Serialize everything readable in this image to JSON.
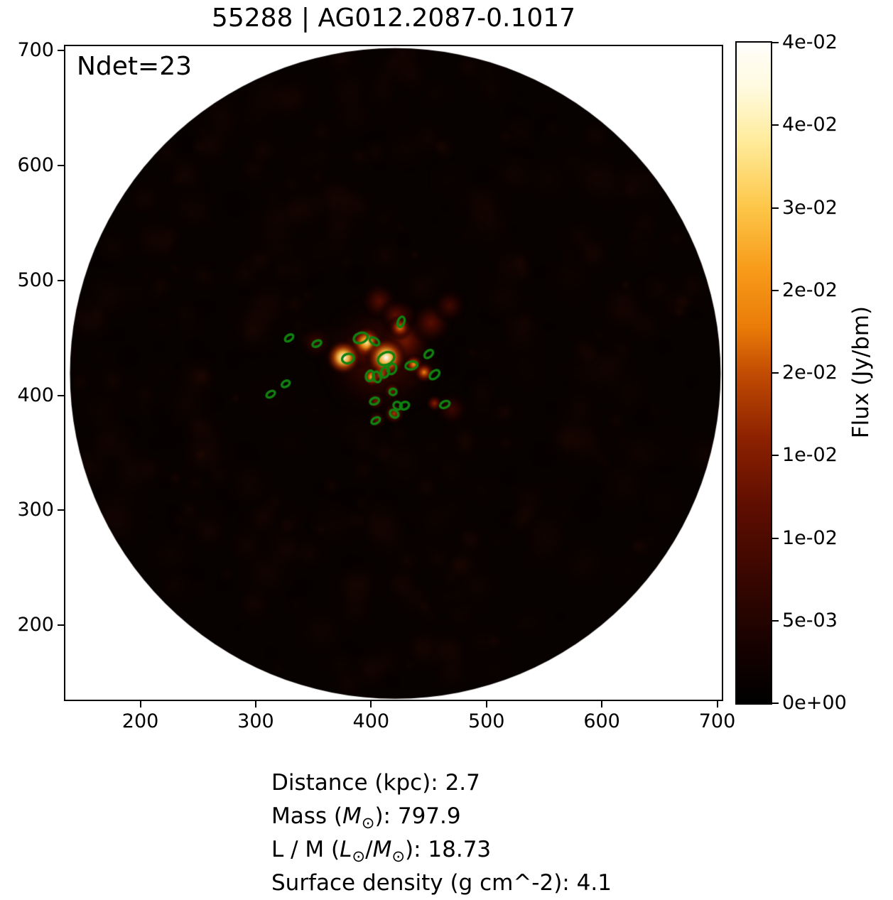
{
  "chart_data": {
    "type": "heatmap",
    "title": "55288 | AG012.2087-0.1017",
    "annotation": "Ndet=23",
    "n_detections": 23,
    "xlabel": "",
    "ylabel": "",
    "xlim": [
      135,
      704
    ],
    "ylim": [
      135,
      704
    ],
    "x_ticks": [
      200,
      300,
      400,
      500,
      600,
      700
    ],
    "y_ticks": [
      700,
      600,
      500,
      400,
      300,
      200
    ],
    "grid": false,
    "field_circle": {
      "cx": 421,
      "cy": 419,
      "r": 282
    },
    "colormap": "afmhot",
    "colorbar": {
      "label": "Flux (Jy/bm)",
      "tick_labels": [
        "4e-02",
        "4e-02",
        "3e-02",
        "2e-02",
        "2e-02",
        "1e-02",
        "1e-02",
        "5e-03",
        "0e+00"
      ],
      "gradient_stops": [
        [
          0.0,
          "#000000"
        ],
        [
          0.08,
          "#140100"
        ],
        [
          0.18,
          "#350600"
        ],
        [
          0.3,
          "#5f0e00"
        ],
        [
          0.4,
          "#8c2100"
        ],
        [
          0.5,
          "#c24c03"
        ],
        [
          0.57,
          "#ea7c08"
        ],
        [
          0.66,
          "#f89c1b"
        ],
        [
          0.75,
          "#fdc648"
        ],
        [
          0.85,
          "#ffeb9a"
        ],
        [
          0.93,
          "#fffade"
        ],
        [
          1.0,
          "#fffefb"
        ]
      ]
    },
    "detection_style": {
      "color": "#108210",
      "line_width": 3.4,
      "size_units": "px"
    },
    "detections": [
      {
        "x": 329,
        "y": 450,
        "w": 13,
        "h": 8,
        "a": -35
      },
      {
        "x": 353,
        "y": 445,
        "w": 13,
        "h": 8,
        "a": -25
      },
      {
        "x": 426,
        "y": 464,
        "w": 15,
        "h": 9,
        "a": -70
      },
      {
        "x": 391,
        "y": 450,
        "w": 20,
        "h": 14,
        "a": -20
      },
      {
        "x": 403,
        "y": 447,
        "w": 15,
        "h": 9,
        "a": 35
      },
      {
        "x": 380,
        "y": 432,
        "w": 17,
        "h": 13,
        "a": -15
      },
      {
        "x": 413,
        "y": 432,
        "w": 24,
        "h": 17,
        "a": -25
      },
      {
        "x": 450,
        "y": 436,
        "w": 14,
        "h": 9,
        "a": -40
      },
      {
        "x": 435,
        "y": 426,
        "w": 17,
        "h": 11,
        "a": -10
      },
      {
        "x": 455,
        "y": 418,
        "w": 16,
        "h": 10,
        "a": -40
      },
      {
        "x": 399,
        "y": 417,
        "w": 11,
        "h": 15,
        "a": 18
      },
      {
        "x": 405,
        "y": 416,
        "w": 11,
        "h": 15,
        "a": -18
      },
      {
        "x": 412,
        "y": 420,
        "w": 11,
        "h": 15,
        "a": 18
      },
      {
        "x": 418,
        "y": 423,
        "w": 12,
        "h": 15,
        "a": 25
      },
      {
        "x": 326,
        "y": 410,
        "w": 12,
        "h": 8,
        "a": -30
      },
      {
        "x": 313,
        "y": 401,
        "w": 13,
        "h": 8,
        "a": -30
      },
      {
        "x": 419,
        "y": 403,
        "w": 10,
        "h": 9,
        "a": 0
      },
      {
        "x": 403,
        "y": 395,
        "w": 13,
        "h": 9,
        "a": -20
      },
      {
        "x": 423,
        "y": 391,
        "w": 12,
        "h": 10,
        "a": 30
      },
      {
        "x": 429,
        "y": 391,
        "w": 13,
        "h": 10,
        "a": -25
      },
      {
        "x": 420,
        "y": 384,
        "w": 13,
        "h": 10,
        "a": 35
      },
      {
        "x": 464,
        "y": 392,
        "w": 14,
        "h": 9,
        "a": -25
      },
      {
        "x": 404,
        "y": 378,
        "w": 13,
        "h": 8,
        "a": -30
      }
    ],
    "sources": [
      {
        "x": 408,
        "y": 432,
        "r": 95,
        "peak": 0.26,
        "alpha": 0.85
      },
      {
        "x": 430,
        "y": 447,
        "r": 40,
        "peak": 0.36,
        "alpha": 0.85
      },
      {
        "x": 390,
        "y": 440,
        "r": 30,
        "peak": 0.4,
        "alpha": 0.85
      },
      {
        "x": 452,
        "y": 463,
        "r": 32,
        "peak": 0.3,
        "alpha": 0.9
      },
      {
        "x": 427,
        "y": 470,
        "r": 22,
        "peak": 0.32,
        "alpha": 0.9
      },
      {
        "x": 468,
        "y": 478,
        "r": 26,
        "peak": 0.24,
        "alpha": 0.85
      },
      {
        "x": 407,
        "y": 482,
        "r": 28,
        "peak": 0.3,
        "alpha": 0.85
      },
      {
        "x": 352,
        "y": 446,
        "r": 26,
        "peak": 0.22,
        "alpha": 0.85
      },
      {
        "x": 470,
        "y": 388,
        "r": 26,
        "peak": 0.22,
        "alpha": 0.85
      },
      {
        "x": 421,
        "y": 470,
        "r": 24,
        "peak": 0.3,
        "alpha": 0.9
      },
      {
        "x": 404,
        "y": 395,
        "r": 14,
        "peak": 0.35,
        "alpha": 1
      },
      {
        "x": 418,
        "y": 404,
        "r": 14,
        "peak": 0.35,
        "alpha": 1
      },
      {
        "x": 405,
        "y": 379,
        "r": 14,
        "peak": 0.3,
        "alpha": 1
      },
      {
        "x": 420,
        "y": 384,
        "r": 16,
        "peak": 0.45,
        "alpha": 1
      },
      {
        "x": 455,
        "y": 393,
        "r": 13,
        "peak": 0.4,
        "alpha": 1
      },
      {
        "x": 437,
        "y": 427,
        "r": 15,
        "peak": 0.65,
        "alpha": 1
      },
      {
        "x": 446,
        "y": 420,
        "r": 16,
        "peak": 0.6,
        "alpha": 1
      },
      {
        "x": 425,
        "y": 459,
        "r": 18,
        "peak": 0.6,
        "alpha": 1
      },
      {
        "x": 401,
        "y": 416,
        "r": 15,
        "peak": 0.75,
        "alpha": 1
      },
      {
        "x": 409,
        "y": 419,
        "r": 14,
        "peak": 0.7,
        "alpha": 1
      },
      {
        "x": 396,
        "y": 446,
        "r": 24,
        "peak": 0.85,
        "alpha": 1
      },
      {
        "x": 376,
        "y": 433,
        "r": 26,
        "peak": 1.0,
        "alpha": 1
      },
      {
        "x": 413,
        "y": 433,
        "r": 30,
        "peak": 1.0,
        "alpha": 1
      }
    ],
    "noise": {
      "seed": 13,
      "base_color": "#070100"
    }
  },
  "stats": {
    "lines": [
      [
        {
          "t": "Distance (kpc): 2.7"
        }
      ],
      [
        {
          "t": "Mass ("
        },
        {
          "t": "M",
          "i": true
        },
        {
          "t": "⊙",
          "sub": true
        },
        {
          "t": "): 797.9"
        }
      ],
      [
        {
          "t": "L / M ("
        },
        {
          "t": "L",
          "i": true
        },
        {
          "t": "⊙",
          "sub": true
        },
        {
          "t": "/"
        },
        {
          "t": "M",
          "i": true
        },
        {
          "t": "⊙",
          "sub": true
        },
        {
          "t": "): 18.73"
        }
      ],
      [
        {
          "t": "Surface density (g cm^-2): 4.1"
        }
      ]
    ]
  }
}
